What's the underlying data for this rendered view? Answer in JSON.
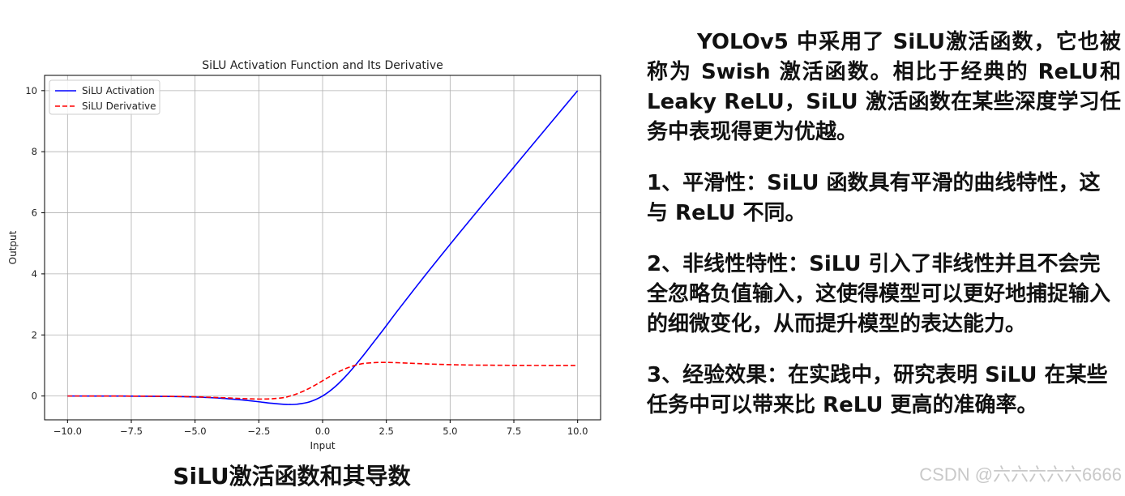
{
  "chart_data": {
    "type": "line",
    "title": "SiLU Activation Function and Its Derivative",
    "xlabel": "Input",
    "ylabel": "Output",
    "xlim": [
      -10.9,
      10.9
    ],
    "ylim": [
      -0.78,
      10.5
    ],
    "xticks": [
      -10.0,
      -7.5,
      -5.0,
      -2.5,
      0.0,
      2.5,
      5.0,
      7.5,
      10.0
    ],
    "xtick_labels": [
      "−10.0",
      "−7.5",
      "−5.0",
      "−2.5",
      "0.0",
      "2.5",
      "5.0",
      "7.5",
      "10.0"
    ],
    "yticks": [
      0,
      2,
      4,
      6,
      8,
      10
    ],
    "ytick_labels": [
      "0",
      "2",
      "4",
      "6",
      "8",
      "10"
    ],
    "grid": true,
    "legend_position": "top-left",
    "x": [
      -10,
      -8,
      -6,
      -5,
      -4,
      -3,
      -2.5,
      -2,
      -1.5,
      -1.28,
      -1,
      -0.5,
      0,
      0.5,
      1,
      1.5,
      2,
      2.4,
      3,
      4,
      5,
      6,
      8,
      10
    ],
    "series": [
      {
        "name": "SiLU Activation",
        "color": "#0000ff",
        "style": "solid",
        "values": [
          -0.0005,
          -0.0027,
          -0.0148,
          -0.0335,
          -0.0719,
          -0.1423,
          -0.1896,
          -0.2384,
          -0.2736,
          -0.2785,
          -0.2689,
          -0.1888,
          0.0,
          0.3112,
          0.7311,
          1.2264,
          1.7616,
          2.1937,
          2.8577,
          3.9281,
          4.9665,
          5.9852,
          7.9973,
          9.9995
        ]
      },
      {
        "name": "SiLU Derivative",
        "color": "#ff0000",
        "style": "dashed",
        "values": [
          -0.0004,
          -0.0024,
          -0.0123,
          -0.0266,
          -0.0532,
          -0.0881,
          -0.0998,
          -0.0908,
          -0.0498,
          -0.0001,
          0.0723,
          0.26,
          0.5,
          0.74,
          0.9277,
          1.0498,
          1.0908,
          1.0998,
          1.0881,
          1.0532,
          1.0266,
          1.0123,
          1.0024,
          1.0004
        ]
      }
    ]
  },
  "caption": "SiLU激活函数和其导数",
  "text_panel": {
    "intro": "YOLOv5 中采用了 SiLU激活函数，它也被称为 Swish 激活函数。相比于经典的 ReLU和 Leaky ReLU，SiLU 激活函数在某些深度学习任务中表现得更为优越。",
    "point1": "1、平滑性：SiLU 函数具有平滑的曲线特性，这与 ReLU 不同。",
    "point2": "2、非线性特性：SiLU 引入了非线性并且不会完全忽略负值输入，这使得模型可以更好地捕捉输入的细微变化，从而提升模型的表达能力。",
    "point3": "3、经验效果：在实践中，研究表明 SiLU 在某些任务中可以带来比 ReLU 更高的准确率。"
  },
  "watermark_credit": "CSDN @六六六六六6666"
}
